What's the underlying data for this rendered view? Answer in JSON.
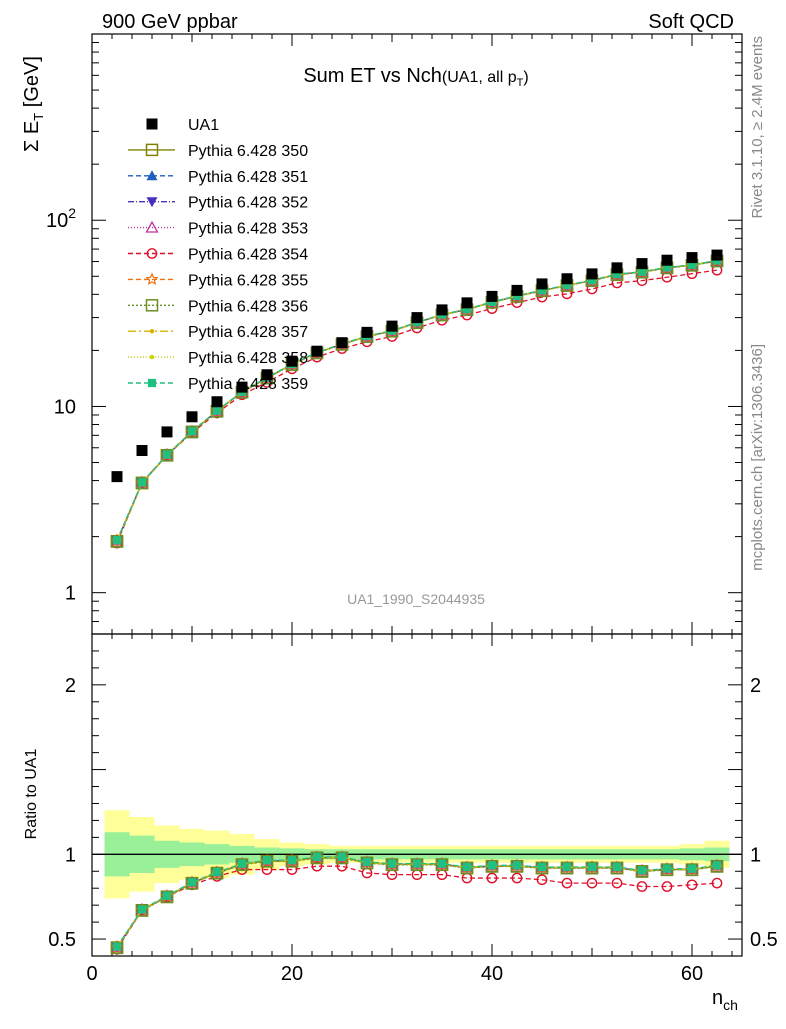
{
  "header": {
    "left": "900 GeV ppbar",
    "right": "Soft QCD"
  },
  "side_labels": {
    "rivet": "Rivet 3.1.10, ≥ 2.4M events",
    "mcplots": "mcplots.cern.ch [arXiv:1306.3436]"
  },
  "watermark": "UA1_1990_S2044935",
  "chart_data": {
    "type": "scatter",
    "title_main": "Sum ET vs Nch",
    "title_sub": "(UA1, all p",
    "title_sub_index": "T",
    "title_sub_end": ")",
    "ylabel_prefix": "Σ E",
    "ylabel_index": "T",
    "ylabel_suffix": " [GeV]",
    "ratio_ylabel": "Ratio to UA1",
    "xlabel": "n",
    "xlabel_index": "ch",
    "xlim": [
      0,
      65
    ],
    "ylim_log": [
      0.6,
      1000
    ],
    "ratio_ylim": [
      0.4,
      2.3
    ],
    "x_ticks": [
      "0",
      "20",
      "40",
      "60"
    ],
    "y_ticks_log": [
      {
        "value": 1,
        "base": "1",
        "exp": ""
      },
      {
        "value": 10,
        "base": "10",
        "exp": ""
      },
      {
        "value": 100,
        "base": "10",
        "exp": "2"
      }
    ],
    "ratio_ticks": [
      {
        "value": 0.5,
        "label": "0.5"
      },
      {
        "value": 1,
        "label": "1"
      },
      {
        "value": 2,
        "label": "2"
      }
    ],
    "x": [
      2.5,
      5,
      7.5,
      10,
      12.5,
      15,
      17.5,
      20,
      22.5,
      25,
      27.5,
      30,
      32.5,
      35,
      37.5,
      40,
      42.5,
      45,
      47.5,
      50,
      52.5,
      55,
      57.5,
      60,
      62.5
    ],
    "data": {
      "name": "UA1",
      "values": [
        4.2,
        5.8,
        7.3,
        8.8,
        10.6,
        12.7,
        14.8,
        17.5,
        19.8,
        22.0,
        25.0,
        27.0,
        30.0,
        33.0,
        36.0,
        39.0,
        42.0,
        45.5,
        48.5,
        51.5,
        55.5,
        58.5,
        61.0,
        63.0,
        65.0
      ]
    },
    "mc_ratio": [
      0.45,
      0.67,
      0.75,
      0.83,
      0.89,
      0.94,
      0.96,
      0.96,
      0.98,
      0.98,
      0.95,
      0.94,
      0.94,
      0.94,
      0.92,
      0.93,
      0.93,
      0.92,
      0.92,
      0.92,
      0.92,
      0.9,
      0.91,
      0.91,
      0.93
    ],
    "r354_ratio": [
      0.44,
      0.67,
      0.75,
      0.82,
      0.87,
      0.91,
      0.91,
      0.91,
      0.93,
      0.93,
      0.89,
      0.88,
      0.88,
      0.88,
      0.86,
      0.86,
      0.86,
      0.85,
      0.83,
      0.83,
      0.83,
      0.81,
      0.81,
      0.82,
      0.83
    ],
    "band_yellow": [
      0.26,
      0.22,
      0.17,
      0.15,
      0.14,
      0.12,
      0.09,
      0.07,
      0.06,
      0.05,
      0.05,
      0.05,
      0.05,
      0.05,
      0.05,
      0.05,
      0.05,
      0.05,
      0.05,
      0.05,
      0.05,
      0.05,
      0.05,
      0.06,
      0.08
    ],
    "band_green": [
      0.13,
      0.11,
      0.08,
      0.07,
      0.06,
      0.05,
      0.04,
      0.035,
      0.03,
      0.03,
      0.03,
      0.03,
      0.03,
      0.03,
      0.03,
      0.03,
      0.03,
      0.03,
      0.03,
      0.03,
      0.03,
      0.03,
      0.03,
      0.035,
      0.04
    ],
    "series": [
      {
        "name": "Pythia 6.428 350",
        "color": "#808000",
        "marker": "open-square",
        "dash": "none",
        "offset": 0.0
      },
      {
        "name": "Pythia 6.428 351",
        "color": "#1f5fbf",
        "marker": "triangle-up",
        "dash": "5,3",
        "offset": 0.003
      },
      {
        "name": "Pythia 6.428 352",
        "color": "#4b2dbf",
        "marker": "triangle-down",
        "dash": "6,2,1,2",
        "offset": 0.002
      },
      {
        "name": "Pythia 6.428 353",
        "color": "#c0349e",
        "marker": "open-triangle",
        "dash": "1,2",
        "offset": 0.004
      },
      {
        "name": "Pythia 6.428 354",
        "color": "#e0102a",
        "marker": "open-circle",
        "dash": "5,3",
        "offset": null
      },
      {
        "name": "Pythia 6.428 355",
        "color": "#f07010",
        "marker": "open-star",
        "dash": "5,3",
        "offset": 0.001
      },
      {
        "name": "Pythia 6.428 356",
        "color": "#6b8e23",
        "marker": "open-square",
        "dash": "2,2",
        "offset": -0.002
      },
      {
        "name": "Pythia 6.428 357",
        "color": "#d4b400",
        "marker": "small-dot",
        "dash": "8,3,2,3",
        "offset": 0.002
      },
      {
        "name": "Pythia 6.428 358",
        "color": "#c8d400",
        "marker": "small-dot",
        "dash": "1,2",
        "offset": 0.003
      },
      {
        "name": "Pythia 6.428 359",
        "color": "#20c080",
        "marker": "filled-square",
        "dash": "5,3",
        "offset": 0.005
      }
    ]
  }
}
